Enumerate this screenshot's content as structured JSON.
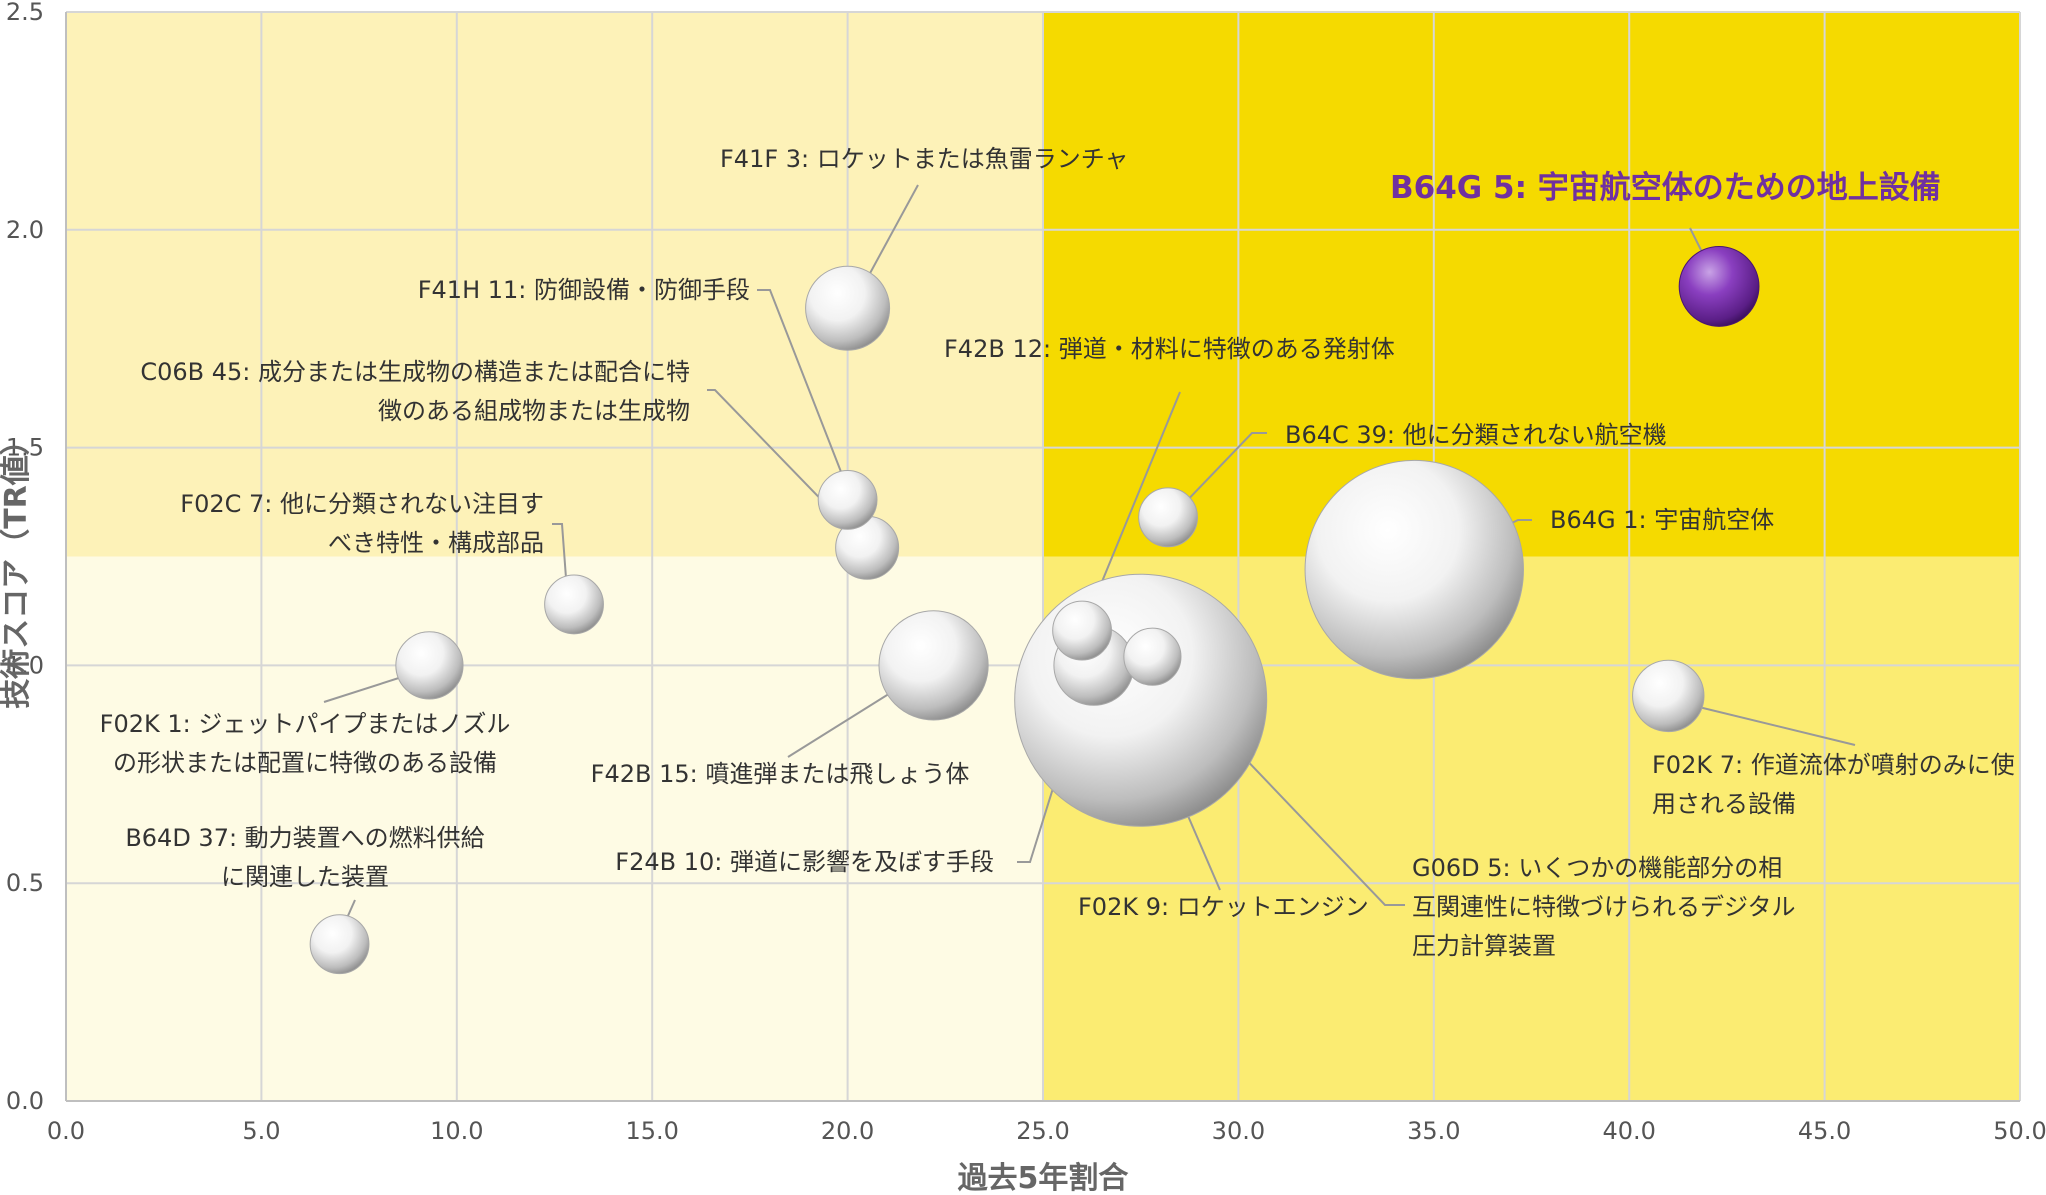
{
  "chart_data": {
    "type": "bubble",
    "xlabel": "過去5年割合",
    "ylabel": "技術スコア（TR値）",
    "xlim": [
      0,
      50
    ],
    "ylim": [
      0,
      2.5
    ],
    "x_ticks": [
      "0.0",
      "5.0",
      "10.0",
      "15.0",
      "20.0",
      "25.0",
      "30.0",
      "35.0",
      "40.0",
      "45.0",
      "50.0"
    ],
    "y_ticks": [
      "0.0",
      "0.5",
      "1.0",
      "1.5",
      "2.0",
      "2.5"
    ],
    "quadrant_split": {
      "x": 25.0,
      "y": 1.25
    },
    "quadrant_colors": {
      "top_left": "#fdf2b8",
      "top_right": "#f5da00",
      "bottom_left": "#fefbe4",
      "bottom_right": "#fbec72"
    },
    "grid": true,
    "highlight_color": "#7030a0",
    "points": [
      {
        "x": 20.0,
        "y": 1.82,
        "r": 1.0,
        "label": "F41F 3: ロケットまたは魚雷ランチャ"
      },
      {
        "x": 20.0,
        "y": 1.38,
        "r": 0.7,
        "label": "F41H 11: 防御設備・防御手段"
      },
      {
        "x": 20.5,
        "y": 1.27,
        "r": 0.75,
        "label": "C06B 45: 成分または生成物の構造または配合に特徴のある組成物または生成物"
      },
      {
        "x": 13.0,
        "y": 1.14,
        "r": 0.7,
        "label": "F02C 7: 他に分類されない注目すべき特性・構成部品"
      },
      {
        "x": 9.3,
        "y": 1.0,
        "r": 0.8,
        "label": "F02K 1: ジェットパイプまたはノズルの形状または配置に特徴のある設備"
      },
      {
        "x": 7.0,
        "y": 0.36,
        "r": 0.7,
        "label": "B64D 37: 動力装置への燃料供給に関連した装置"
      },
      {
        "x": 22.2,
        "y": 1.0,
        "r": 1.3,
        "label": "F42B 15: 噴進弾または飛しょう体"
      },
      {
        "x": 27.5,
        "y": 0.92,
        "r": 3.0,
        "label": "F02K 9: ロケットエンジン"
      },
      {
        "x": 26.3,
        "y": 1.0,
        "r": 0.95,
        "label": "F24B 10: 弾道に影響を及ぼす手段"
      },
      {
        "x": 26.0,
        "y": 1.08,
        "r": 0.7,
        "label": "F42B 12: 弾道・材料に特徴のある発射体"
      },
      {
        "x": 27.8,
        "y": 1.02,
        "r": 0.68,
        "label": "G06D 5: いくつかの機能部分の相互関連性に特徴づけられるデジタル圧力計算装置"
      },
      {
        "x": 28.2,
        "y": 1.34,
        "r": 0.7,
        "label": "B64C 39: 他に分類されない航空機"
      },
      {
        "x": 34.5,
        "y": 1.22,
        "r": 2.6,
        "label": "B64G 1: 宇宙航空体"
      },
      {
        "x": 41.0,
        "y": 0.93,
        "r": 0.85,
        "label": "F02K 7: 作道流体が噴射のみに使用される設備"
      },
      {
        "x": 42.3,
        "y": 1.87,
        "r": 0.95,
        "label": "B64G 5: 宇宙航空体のための地上設備",
        "highlight": true
      }
    ],
    "annotations": [
      {
        "lines": [
          "F41F 3: ロケットまたは魚雷ランチャ"
        ]
      },
      {
        "lines": [
          "F41H 11: 防御設備・防御手段"
        ]
      },
      {
        "lines": [
          "C06B 45: 成分または生成物の構造または配合に特",
          "徴のある組成物または生成物"
        ]
      },
      {
        "lines": [
          "F02C 7: 他に分類されない注目す",
          "べき特性・構成部品"
        ]
      },
      {
        "lines": [
          "F02K 1: ジェットパイプまたはノズル",
          "の形状または配置に特徴のある設備"
        ]
      },
      {
        "lines": [
          "B64D 37: 動力装置への燃料供給",
          "に関連した装置"
        ]
      },
      {
        "lines": [
          "F42B 15: 噴進弾または飛しょう体"
        ]
      },
      {
        "lines": [
          "F24B 10: 弾道に影響を及ぼす手段"
        ]
      },
      {
        "lines": [
          "F42B 12: 弾道・材料に特徴のある発射体"
        ]
      },
      {
        "lines": [
          "F02K 9: ロケットエンジン"
        ]
      },
      {
        "lines": [
          "G06D 5: いくつかの機能部分の相",
          "互関連性に特徴づけられるデジタル",
          "圧力計算装置"
        ]
      },
      {
        "lines": [
          "B64C 39: 他に分類されない航空機"
        ]
      },
      {
        "lines": [
          "B64G 1: 宇宙航空体"
        ]
      },
      {
        "lines": [
          "F02K 7: 作道流体が噴射のみに使",
          "用される設備"
        ]
      },
      {
        "lines": [
          "B64G 5: 宇宙航空体のための地上設備"
        ],
        "highlight": true
      }
    ]
  }
}
